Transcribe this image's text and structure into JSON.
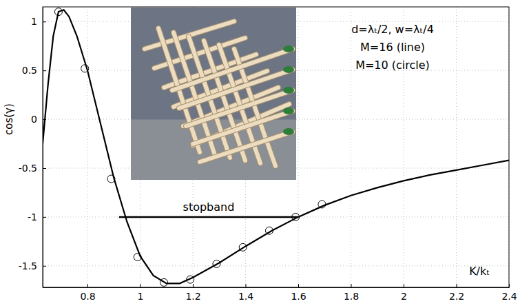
{
  "chart_data": {
    "type": "line",
    "y_label": "cos(γ)",
    "x_label": "K/kₜ",
    "xlim": [
      0.63,
      2.4
    ],
    "ylim": [
      -1.72,
      1.15
    ],
    "xticks": [
      0.8,
      1,
      1.2,
      1.4,
      1.6,
      1.8,
      2,
      2.2,
      2.4
    ],
    "yticks": [
      -1.5,
      -1,
      -0.5,
      0,
      0.5,
      1
    ],
    "grid": true,
    "annotations": [
      "d=λₜ/2, w=λₜ/4",
      "M=16 (line)",
      "M=10 (circle)"
    ],
    "stopband": {
      "label": "stopband",
      "x": [
        0.92,
        1.6
      ],
      "y": -1
    },
    "series": [
      {
        "type": "line",
        "color": "#000000",
        "line_style": "solid",
        "x": [
          0.63,
          0.65,
          0.67,
          0.69,
          0.71,
          0.73,
          0.76,
          0.8,
          0.85,
          0.9,
          0.95,
          1.0,
          1.05,
          1.1,
          1.15,
          1.2,
          1.3,
          1.4,
          1.5,
          1.6,
          1.7,
          1.8,
          1.9,
          2.0,
          2.1,
          2.2,
          2.3,
          2.4
        ],
        "values": [
          -0.25,
          0.35,
          0.85,
          1.1,
          1.12,
          1.05,
          0.85,
          0.5,
          -0.05,
          -0.6,
          -1.05,
          -1.4,
          -1.6,
          -1.68,
          -1.68,
          -1.62,
          -1.47,
          -1.3,
          -1.14,
          -1.0,
          -0.88,
          -0.78,
          -0.7,
          -0.63,
          -0.57,
          -0.52,
          -0.47,
          -0.42
        ]
      },
      {
        "type": "scatter",
        "color": "#000000",
        "marker": "circle",
        "x": [
          0.69,
          0.79,
          0.89,
          0.99,
          1.09,
          1.19,
          1.29,
          1.39,
          1.49,
          1.59,
          1.69
        ],
        "values": [
          1.1,
          0.52,
          -0.61,
          -1.41,
          -1.67,
          -1.64,
          -1.48,
          -1.31,
          -1.14,
          -1.0,
          -0.87
        ]
      }
    ]
  }
}
